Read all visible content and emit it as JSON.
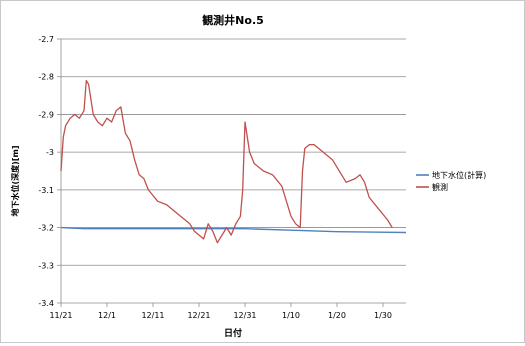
{
  "chart_data": {
    "type": "line",
    "title": "観測井No.5",
    "xlabel": "日付",
    "ylabel": "地下水位(深度)[m]",
    "ylim": [
      -3.4,
      -2.7
    ],
    "xlim": [
      "2010-11-21",
      "2011-02-04"
    ],
    "x_ticks": [
      "11/21",
      "12/1",
      "12/11",
      "12/21",
      "12/31",
      "1/10",
      "1/20",
      "1/30"
    ],
    "y_ticks": [
      "-2.7",
      "-2.8",
      "-2.9",
      "-3",
      "-3.1",
      "-3.2",
      "-3.3",
      "-3.4"
    ],
    "grid": "horizontal",
    "legend_position": "right",
    "series": [
      {
        "name": "地下水位(計算)",
        "color": "#4f81bd",
        "points": [
          [
            "2010-11-21",
            -3.2
          ],
          [
            "2010-11-26",
            -3.203
          ],
          [
            "2010-12-31",
            -3.203
          ],
          [
            "2011-01-10",
            -3.207
          ],
          [
            "2011-01-20",
            -3.211
          ],
          [
            "2011-02-04",
            -3.213
          ]
        ]
      },
      {
        "name": "観測",
        "color": "#c0504d",
        "points": [
          [
            "2010-11-21",
            -3.05
          ],
          [
            "2010-11-21T12",
            -2.96
          ],
          [
            "2010-11-22",
            -2.93
          ],
          [
            "2010-11-23",
            -2.91
          ],
          [
            "2010-11-24",
            -2.9
          ],
          [
            "2010-11-25",
            -2.91
          ],
          [
            "2010-11-26",
            -2.89
          ],
          [
            "2010-11-26T12",
            -2.81
          ],
          [
            "2010-11-27",
            -2.82
          ],
          [
            "2010-11-28",
            -2.9
          ],
          [
            "2010-11-29",
            -2.92
          ],
          [
            "2010-11-30",
            -2.93
          ],
          [
            "2010-12-01",
            -2.91
          ],
          [
            "2010-12-02",
            -2.92
          ],
          [
            "2010-12-03",
            -2.89
          ],
          [
            "2010-12-04",
            -2.88
          ],
          [
            "2010-12-05",
            -2.95
          ],
          [
            "2010-12-06",
            -2.97
          ],
          [
            "2010-12-07",
            -3.02
          ],
          [
            "2010-12-08",
            -3.06
          ],
          [
            "2010-12-09",
            -3.07
          ],
          [
            "2010-12-10",
            -3.1
          ],
          [
            "2010-12-12",
            -3.13
          ],
          [
            "2010-12-14",
            -3.14
          ],
          [
            "2010-12-16",
            -3.16
          ],
          [
            "2010-12-18",
            -3.18
          ],
          [
            "2010-12-19",
            -3.19
          ],
          [
            "2010-12-20",
            -3.21
          ],
          [
            "2010-12-22",
            -3.23
          ],
          [
            "2010-12-23",
            -3.19
          ],
          [
            "2010-12-24",
            -3.21
          ],
          [
            "2010-12-25",
            -3.24
          ],
          [
            "2010-12-27",
            -3.2
          ],
          [
            "2010-12-28",
            -3.22
          ],
          [
            "2010-12-29",
            -3.19
          ],
          [
            "2010-12-30",
            -3.17
          ],
          [
            "2010-12-30T12",
            -3.1
          ],
          [
            "2010-12-31",
            -2.92
          ],
          [
            "2011-01-01",
            -3.0
          ],
          [
            "2011-01-02",
            -3.03
          ],
          [
            "2011-01-04",
            -3.05
          ],
          [
            "2011-01-06",
            -3.06
          ],
          [
            "2011-01-08",
            -3.09
          ],
          [
            "2011-01-09",
            -3.13
          ],
          [
            "2011-01-10",
            -3.17
          ],
          [
            "2011-01-11",
            -3.19
          ],
          [
            "2011-01-12",
            -3.2
          ],
          [
            "2011-01-12T12",
            -3.05
          ],
          [
            "2011-01-13",
            -2.99
          ],
          [
            "2011-01-14",
            -2.98
          ],
          [
            "2011-01-15",
            -2.98
          ],
          [
            "2011-01-17",
            -3.0
          ],
          [
            "2011-01-19",
            -3.02
          ],
          [
            "2011-01-21",
            -3.06
          ],
          [
            "2011-01-22",
            -3.08
          ],
          [
            "2011-01-24",
            -3.07
          ],
          [
            "2011-01-25",
            -3.06
          ],
          [
            "2011-01-26",
            -3.08
          ],
          [
            "2011-01-27",
            -3.12
          ],
          [
            "2011-01-29",
            -3.15
          ],
          [
            "2011-01-31",
            -3.18
          ],
          [
            "2011-02-01",
            -3.2
          ]
        ]
      }
    ]
  }
}
